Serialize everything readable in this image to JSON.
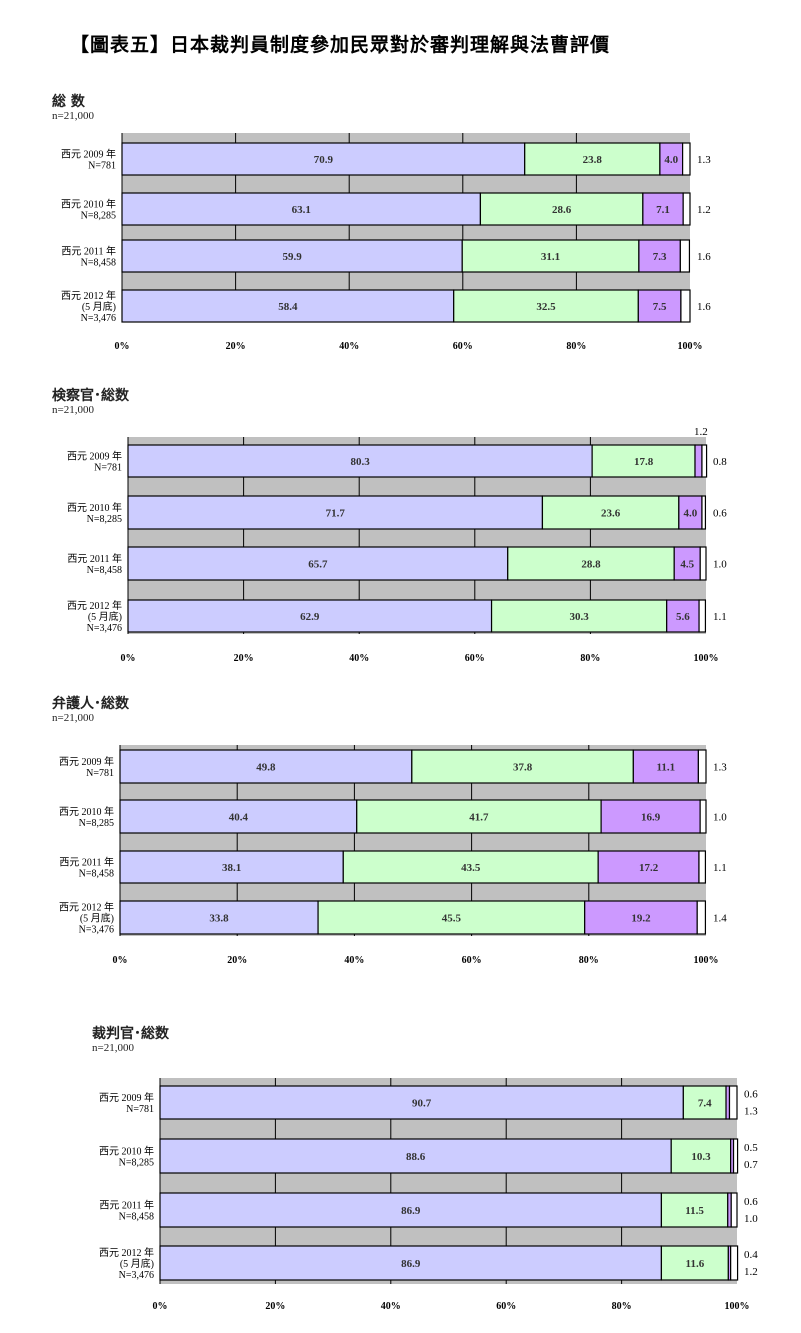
{
  "title": "【圖表五】日本裁判員制度參加民眾對於審判理解與法曹評價",
  "colors": {
    "seg1": "#ccccff",
    "seg2": "#ccffcc",
    "seg3": "#cc99ff",
    "seg4": "#ffffff",
    "band": "#c0c0c0"
  },
  "chart_data": [
    {
      "type": "bar",
      "orientation": "horizontal-stacked-100",
      "title": "総 数",
      "subtitle": "n=21,000",
      "xlim": [
        0,
        100
      ],
      "xticks": [
        "0%",
        "20%",
        "40%",
        "60%",
        "80%",
        "100%"
      ],
      "categories": [
        [
          "西元 2009 年",
          "N=781"
        ],
        [
          "西元 2010 年",
          "N=8,285"
        ],
        [
          "西元 2011 年",
          "N=8,458"
        ],
        [
          "西元 2012 年",
          "(5 月底)",
          "N=3,476"
        ]
      ],
      "series": [
        {
          "name": "segment-1",
          "values": [
            70.9,
            63.1,
            59.9,
            58.4
          ]
        },
        {
          "name": "segment-2",
          "values": [
            23.8,
            28.6,
            31.1,
            32.5
          ]
        },
        {
          "name": "segment-3",
          "values": [
            4.0,
            7.1,
            7.3,
            7.5
          ]
        },
        {
          "name": "segment-4",
          "values": [
            1.3,
            1.2,
            1.6,
            1.6
          ]
        }
      ]
    },
    {
      "type": "bar",
      "orientation": "horizontal-stacked-100",
      "title": "検察官･総数",
      "subtitle": "n=21,000",
      "xlim": [
        0,
        100
      ],
      "xticks": [
        "0%",
        "20%",
        "40%",
        "60%",
        "80%",
        "100%"
      ],
      "categories": [
        [
          "西元 2009 年",
          "N=781"
        ],
        [
          "西元 2010 年",
          "N=8,285"
        ],
        [
          "西元 2011 年",
          "N=8,458"
        ],
        [
          "西元 2012 年",
          "(5 月底)",
          "N=3,476"
        ]
      ],
      "series": [
        {
          "name": "segment-1",
          "values": [
            80.3,
            71.7,
            65.7,
            62.9
          ]
        },
        {
          "name": "segment-2",
          "values": [
            17.8,
            23.6,
            28.8,
            30.3
          ]
        },
        {
          "name": "segment-3",
          "values": [
            1.2,
            4.0,
            4.5,
            5.6
          ]
        },
        {
          "name": "segment-4",
          "values": [
            0.8,
            0.6,
            1.0,
            1.1
          ]
        }
      ]
    },
    {
      "type": "bar",
      "orientation": "horizontal-stacked-100",
      "title": "弁護人･総数",
      "subtitle": "n=21,000",
      "xlim": [
        0,
        100
      ],
      "xticks": [
        "0%",
        "20%",
        "40%",
        "60%",
        "80%",
        "100%"
      ],
      "categories": [
        [
          "西元 2009 年",
          "N=781"
        ],
        [
          "西元 2010 年",
          "N=8,285"
        ],
        [
          "西元 2011 年",
          "N=8,458"
        ],
        [
          "西元 2012 年",
          "(5 月底)",
          "N=3,476"
        ]
      ],
      "series": [
        {
          "name": "segment-1",
          "values": [
            49.8,
            40.4,
            38.1,
            33.8
          ]
        },
        {
          "name": "segment-2",
          "values": [
            37.8,
            41.7,
            43.5,
            45.5
          ]
        },
        {
          "name": "segment-3",
          "values": [
            11.1,
            16.9,
            17.2,
            19.2
          ]
        },
        {
          "name": "segment-4",
          "values": [
            1.3,
            1.0,
            1.1,
            1.4
          ]
        }
      ]
    },
    {
      "type": "bar",
      "orientation": "horizontal-stacked-100",
      "title": "裁判官･総数",
      "subtitle": "n=21,000",
      "xlim": [
        0,
        100
      ],
      "xticks": [
        "0%",
        "20%",
        "40%",
        "60%",
        "80%",
        "100%"
      ],
      "categories": [
        [
          "西元 2009 年",
          "N=781"
        ],
        [
          "西元 2010 年",
          "N=8,285"
        ],
        [
          "西元 2011 年",
          "N=8,458"
        ],
        [
          "西元 2012 年",
          "(5 月底)",
          "N=3,476"
        ]
      ],
      "series": [
        {
          "name": "segment-1",
          "values": [
            90.7,
            88.6,
            86.9,
            86.9
          ]
        },
        {
          "name": "segment-2",
          "values": [
            7.4,
            10.3,
            11.5,
            11.6
          ]
        },
        {
          "name": "segment-3",
          "values": [
            0.6,
            0.5,
            0.6,
            0.4
          ]
        },
        {
          "name": "segment-4",
          "values": [
            1.3,
            0.7,
            1.0,
            1.2
          ]
        }
      ]
    }
  ]
}
